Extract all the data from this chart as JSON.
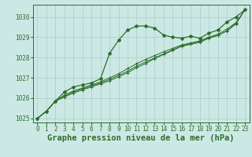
{
  "background_color": "#cce8e4",
  "grid_color": "#aaccca",
  "line_color": "#2d6e2d",
  "marker_color": "#2d6e2d",
  "xlabel": "Graphe pression niveau de la mer (hPa)",
  "xlim": [
    -0.5,
    23.5
  ],
  "ylim": [
    1024.8,
    1030.6
  ],
  "yticks": [
    1025,
    1026,
    1027,
    1028,
    1029,
    1030
  ],
  "xticks": [
    0,
    1,
    2,
    3,
    4,
    5,
    6,
    7,
    8,
    9,
    10,
    11,
    12,
    13,
    14,
    15,
    16,
    17,
    18,
    19,
    20,
    21,
    22,
    23
  ],
  "series_main": [
    1025.0,
    1025.35,
    1025.85,
    1026.3,
    1026.55,
    1026.65,
    1026.75,
    1026.95,
    1028.2,
    1028.85,
    1029.35,
    1029.55,
    1029.55,
    1029.45,
    1029.1,
    1029.0,
    1028.95,
    1029.05,
    1028.95,
    1029.2,
    1029.35,
    1029.75,
    1030.0,
    1030.35
  ],
  "series_others": [
    [
      1025.0,
      1025.35,
      1025.85,
      1026.05,
      1026.25,
      1026.4,
      1026.55,
      1026.7,
      1026.85,
      1027.05,
      1027.25,
      1027.5,
      1027.7,
      1027.95,
      1028.15,
      1028.35,
      1028.55,
      1028.65,
      1028.75,
      1028.95,
      1029.1,
      1029.3,
      1029.65,
      1030.35
    ],
    [
      1025.0,
      1025.35,
      1025.85,
      1026.15,
      1026.35,
      1026.5,
      1026.65,
      1026.8,
      1027.0,
      1027.2,
      1027.45,
      1027.7,
      1027.9,
      1028.1,
      1028.28,
      1028.45,
      1028.62,
      1028.72,
      1028.82,
      1029.0,
      1029.15,
      1029.4,
      1029.72,
      1030.35
    ],
    [
      1025.0,
      1025.35,
      1025.85,
      1026.1,
      1026.3,
      1026.45,
      1026.6,
      1026.75,
      1026.92,
      1027.12,
      1027.32,
      1027.58,
      1027.78,
      1027.98,
      1028.18,
      1028.38,
      1028.58,
      1028.68,
      1028.78,
      1028.96,
      1029.08,
      1029.32,
      1029.68,
      1030.35
    ]
  ],
  "font_color": "#2d6e2d",
  "tick_fontsize": 5.5,
  "label_fontsize": 7.5
}
